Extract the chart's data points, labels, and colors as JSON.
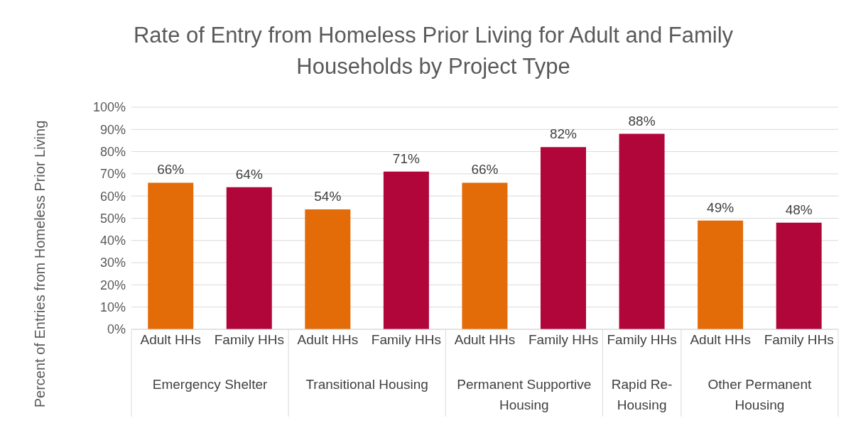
{
  "chart_data": {
    "type": "bar",
    "title": "Rate of Entry from Homeless Prior Living for Adult and Family Households by Project Type",
    "ylabel": "Percent of Entries from Homeless Prior Living",
    "categories": [
      "Adult HHs",
      "Family HHs",
      "Adult HHs",
      "Family HHs",
      "Adult HHs",
      "Family HHs",
      "Family HHs",
      "Adult HHs",
      "Family HHs"
    ],
    "values": [
      66,
      64,
      54,
      71,
      66,
      82,
      88,
      49,
      48
    ],
    "colors": [
      "#e36c09",
      "#b0063a",
      "#e36c09",
      "#b0063a",
      "#e36c09",
      "#b0063a",
      "#b0063a",
      "#e36c09",
      "#b0063a"
    ],
    "value_labels": [
      "66%",
      "64%",
      "54%",
      "71%",
      "66%",
      "82%",
      "88%",
      "49%",
      "48%"
    ],
    "ylim": [
      0,
      100
    ],
    "yticks": [
      {
        "value": 0,
        "label": "0%"
      },
      {
        "value": 10,
        "label": "10%"
      },
      {
        "value": 20,
        "label": "20%"
      },
      {
        "value": 30,
        "label": "30%"
      },
      {
        "value": 40,
        "label": "40%"
      },
      {
        "value": 50,
        "label": "50%"
      },
      {
        "value": 60,
        "label": "60%"
      },
      {
        "value": 70,
        "label": "70%"
      },
      {
        "value": 80,
        "label": "80%"
      },
      {
        "value": 90,
        "label": "90%"
      },
      {
        "value": 100,
        "label": "100%"
      }
    ],
    "grid": "y",
    "annotations": [
      "Emergency Shelter",
      "Transitional Housing",
      "Permanent Supportive Housing",
      "Rapid Re-Housing",
      "Other Permanent Housing"
    ]
  }
}
